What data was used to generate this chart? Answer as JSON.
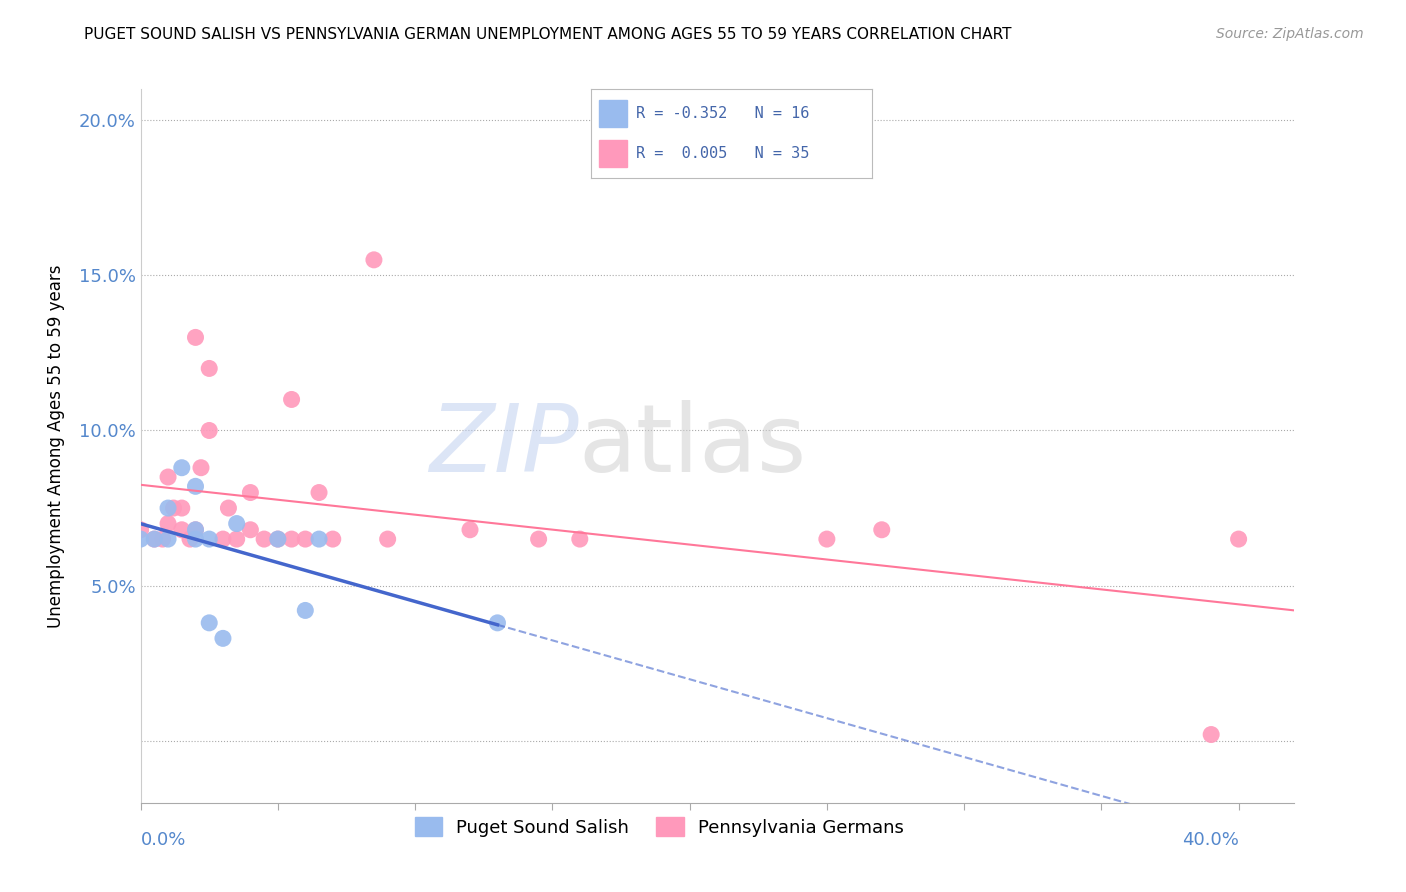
{
  "title": "PUGET SOUND SALISH VS PENNSYLVANIA GERMAN UNEMPLOYMENT AMONG AGES 55 TO 59 YEARS CORRELATION CHART",
  "source": "Source: ZipAtlas.com",
  "ylabel": "Unemployment Among Ages 55 to 59 years",
  "xlim": [
    0.0,
    0.42
  ],
  "ylim": [
    -0.02,
    0.21
  ],
  "color_blue": "#99BBEE",
  "color_pink": "#FF99BB",
  "trendline_blue": "#4466CC",
  "trendline_pink": "#FF7799",
  "legend_label1": "Puget Sound Salish",
  "legend_label2": "Pennsylvania Germans",
  "ps_x": [
    0.0,
    0.005,
    0.01,
    0.01,
    0.015,
    0.02,
    0.02,
    0.02,
    0.025,
    0.025,
    0.03,
    0.035,
    0.05,
    0.06,
    0.065,
    0.13
  ],
  "ps_y": [
    0.065,
    0.065,
    0.065,
    0.075,
    0.088,
    0.082,
    0.065,
    0.068,
    0.065,
    0.038,
    0.033,
    0.07,
    0.065,
    0.042,
    0.065,
    0.038
  ],
  "pg_x": [
    0.0,
    0.005,
    0.008,
    0.01,
    0.01,
    0.012,
    0.015,
    0.015,
    0.018,
    0.02,
    0.02,
    0.022,
    0.025,
    0.025,
    0.03,
    0.032,
    0.035,
    0.04,
    0.04,
    0.045,
    0.05,
    0.055,
    0.055,
    0.06,
    0.065,
    0.07,
    0.085,
    0.09,
    0.12,
    0.145,
    0.16,
    0.25,
    0.27,
    0.39,
    0.4
  ],
  "pg_y": [
    0.068,
    0.065,
    0.065,
    0.07,
    0.085,
    0.075,
    0.068,
    0.075,
    0.065,
    0.068,
    0.13,
    0.088,
    0.1,
    0.12,
    0.065,
    0.075,
    0.065,
    0.08,
    0.068,
    0.065,
    0.065,
    0.065,
    0.11,
    0.065,
    0.08,
    0.065,
    0.155,
    0.065,
    0.068,
    0.065,
    0.065,
    0.065,
    0.068,
    0.002,
    0.065
  ]
}
